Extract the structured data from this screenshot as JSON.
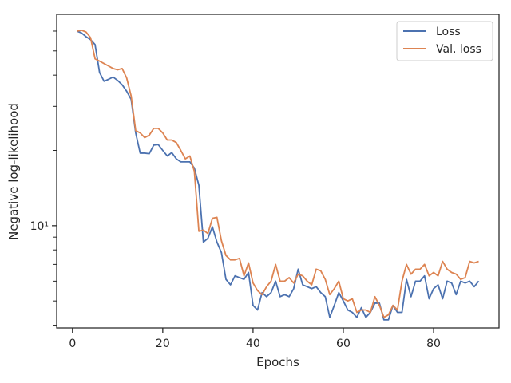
{
  "chart_data": {
    "type": "line",
    "xlabel": "Epochs",
    "ylabel": "Negative log-likelihood",
    "x_ticks": [
      0,
      20,
      40,
      60,
      80
    ],
    "y_ticks_labeled": [
      {
        "value": 10,
        "label": "10¹"
      }
    ],
    "y_minor_ticks": [
      4,
      5,
      6,
      7,
      8,
      9,
      20,
      30,
      40,
      50,
      60
    ],
    "xlim": [
      -3.5,
      94.5
    ],
    "ylim": [
      3.9,
      70
    ],
    "yscale": "log",
    "grid": false,
    "legend_position": "top-right",
    "x": [
      1,
      2,
      3,
      4,
      5,
      6,
      7,
      8,
      9,
      10,
      11,
      12,
      13,
      14,
      15,
      16,
      17,
      18,
      19,
      20,
      21,
      22,
      23,
      24,
      25,
      26,
      27,
      28,
      29,
      30,
      31,
      32,
      33,
      34,
      35,
      36,
      37,
      38,
      39,
      40,
      41,
      42,
      43,
      44,
      45,
      46,
      47,
      48,
      49,
      50,
      51,
      52,
      53,
      54,
      55,
      56,
      57,
      58,
      59,
      60,
      61,
      62,
      63,
      64,
      65,
      66,
      67,
      68,
      69,
      70,
      71,
      72,
      73,
      74,
      75,
      76,
      77,
      78,
      79,
      80,
      81,
      82,
      83,
      84,
      85,
      86,
      87,
      88,
      89,
      90
    ],
    "series": [
      {
        "name": "Loss",
        "color": "#4c72b0",
        "values": [
          60.0,
          59.0,
          57.0,
          55.5,
          53.0,
          41.0,
          37.8,
          38.5,
          39.3,
          38.1,
          36.6,
          34.5,
          32.0,
          23.5,
          19.5,
          19.5,
          19.4,
          21.0,
          21.1,
          20.0,
          19.0,
          19.6,
          18.5,
          18.0,
          18.0,
          18.0,
          17.0,
          14.5,
          8.6,
          8.9,
          9.9,
          8.6,
          7.8,
          6.1,
          5.8,
          6.3,
          6.2,
          6.1,
          6.5,
          4.8,
          4.6,
          5.4,
          5.2,
          5.4,
          6.0,
          5.2,
          5.3,
          5.2,
          5.6,
          6.7,
          5.8,
          5.7,
          5.6,
          5.7,
          5.4,
          5.2,
          4.3,
          4.8,
          5.4,
          5.0,
          4.6,
          4.5,
          4.3,
          4.7,
          4.3,
          4.5,
          4.9,
          4.9,
          4.2,
          4.2,
          4.8,
          4.5,
          4.5,
          6.1,
          5.2,
          6.0,
          6.0,
          6.3,
          5.1,
          5.6,
          5.8,
          5.1,
          6.0,
          5.9,
          5.3,
          6.0,
          5.9,
          6.0,
          5.7,
          6.0
        ]
      },
      {
        "name": "Val. loss",
        "color": "#dd8452",
        "values": [
          60.0,
          60.5,
          59.5,
          56.5,
          46.5,
          45.5,
          44.5,
          43.5,
          42.5,
          42.0,
          42.5,
          39.0,
          33.0,
          24.0,
          23.5,
          22.5,
          23.0,
          24.5,
          24.5,
          23.5,
          22.0,
          22.0,
          21.5,
          20.0,
          18.5,
          19.0,
          16.5,
          9.5,
          9.6,
          9.3,
          10.7,
          10.8,
          8.7,
          7.6,
          7.3,
          7.3,
          7.4,
          6.3,
          7.1,
          5.9,
          5.5,
          5.3,
          5.7,
          6.0,
          7.0,
          6.0,
          6.0,
          6.2,
          5.9,
          6.4,
          6.3,
          6.0,
          5.8,
          6.7,
          6.6,
          6.1,
          5.3,
          5.6,
          6.0,
          5.1,
          5.0,
          5.1,
          4.5,
          4.6,
          4.6,
          4.5,
          5.2,
          4.8,
          4.3,
          4.4,
          4.8,
          4.6,
          6.0,
          7.0,
          6.4,
          6.7,
          6.7,
          7.0,
          6.3,
          6.5,
          6.3,
          7.2,
          6.7,
          6.5,
          6.4,
          6.1,
          6.2,
          7.2,
          7.1,
          7.2
        ]
      }
    ]
  }
}
